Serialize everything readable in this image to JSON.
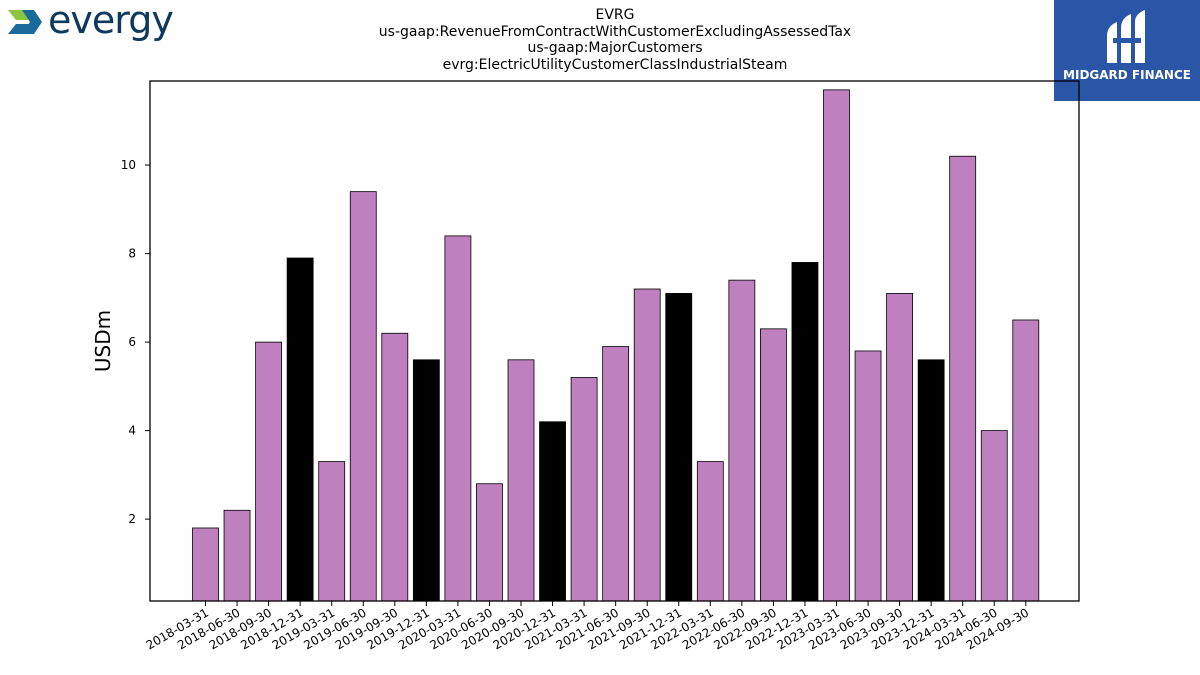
{
  "branding": {
    "left_logo_text": "evergy",
    "right_logo_text": "MIDGARD FINANCE"
  },
  "title_lines": [
    "EVRG",
    "us-gaap:RevenueFromContractWithCustomerExcludingAssessedTax",
    "us-gaap:MajorCustomers",
    "evrg:ElectricUtilityCustomerClassIndustrialSteam"
  ],
  "chart_data": {
    "type": "bar",
    "title": "EVRG us-gaap:RevenueFromContractWithCustomerExcludingAssessedTax us-gaap:MajorCustomers evrg:ElectricUtilityCustomerClassIndustrialSteam",
    "xlabel": "",
    "ylabel": "USDm",
    "ylim": [
      0.15,
      11.9
    ],
    "yticks": [
      2,
      4,
      6,
      8,
      10
    ],
    "grid": false,
    "colors": {
      "quarter": "#bf80bf",
      "year_end": "#000000",
      "edge": "#000000"
    },
    "categories": [
      "2018-03-31",
      "2018-06-30",
      "2018-09-30",
      "2018-12-31",
      "2019-03-31",
      "2019-06-30",
      "2019-09-30",
      "2019-12-31",
      "2020-03-31",
      "2020-06-30",
      "2020-09-30",
      "2020-12-31",
      "2021-03-31",
      "2021-06-30",
      "2021-09-30",
      "2021-12-31",
      "2022-03-31",
      "2022-06-30",
      "2022-09-30",
      "2022-12-31",
      "2023-03-31",
      "2023-06-30",
      "2023-09-30",
      "2023-12-31",
      "2024-03-31",
      "2024-06-30",
      "2024-09-30"
    ],
    "values": [
      1.8,
      2.2,
      6.0,
      7.9,
      3.3,
      9.4,
      6.2,
      5.6,
      8.4,
      2.8,
      5.6,
      4.2,
      5.2,
      5.9,
      7.2,
      7.1,
      3.3,
      7.4,
      6.3,
      7.8,
      11.7,
      5.8,
      7.1,
      5.6,
      10.2,
      4.0,
      6.5
    ]
  }
}
